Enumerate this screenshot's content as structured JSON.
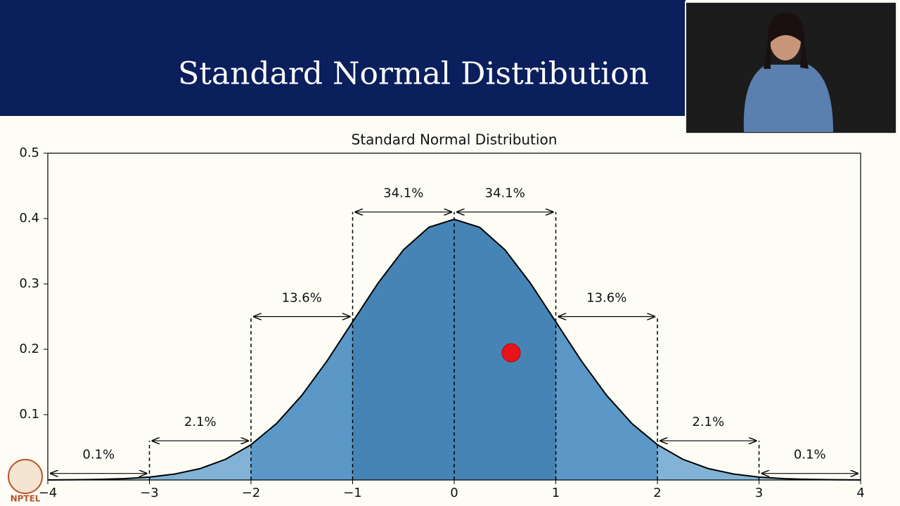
{
  "slide_title": "Standard Normal Distribution",
  "logo": "NPTEL",
  "chart_data": {
    "type": "area",
    "title": "Standard Normal Distribution",
    "x": [
      -4,
      -3.75,
      -3.5,
      -3.25,
      -3,
      -2.75,
      -2.5,
      -2.25,
      -2,
      -1.75,
      -1.5,
      -1.25,
      -1,
      -0.75,
      -0.5,
      -0.25,
      0,
      0.25,
      0.5,
      0.75,
      1,
      1.25,
      1.5,
      1.75,
      2,
      2.25,
      2.5,
      2.75,
      3,
      3.25,
      3.5,
      3.75,
      4
    ],
    "series": [
      {
        "color": "#000000",
        "values": [
          0.0001,
          0.0004,
          0.0009,
          0.002,
          0.0044,
          0.0091,
          0.0175,
          0.0317,
          0.054,
          0.0863,
          0.1295,
          0.1826,
          0.242,
          0.3011,
          0.3521,
          0.3867,
          0.3989,
          0.3867,
          0.3521,
          0.3011,
          0.242,
          0.1826,
          0.1295,
          0.0863,
          0.054,
          0.0317,
          0.0175,
          0.0091,
          0.0044,
          0.002,
          0.0009,
          0.0004,
          0.0001
        ]
      }
    ],
    "regions": [
      {
        "from": -4,
        "to": -3,
        "value": 0.1,
        "label": "0.1%",
        "y": 0.01,
        "color": "#a3c8e3"
      },
      {
        "from": -3,
        "to": -2,
        "value": 2.1,
        "label": "2.1%",
        "y": 0.06,
        "color": "#82b3d7"
      },
      {
        "from": -2,
        "to": -1,
        "value": 13.6,
        "label": "13.6%",
        "y": 0.25,
        "color": "#5b98c8"
      },
      {
        "from": -1,
        "to": 0,
        "value": 34.1,
        "label": "34.1%",
        "y": 0.41,
        "color": "#4684b6"
      },
      {
        "from": 0,
        "to": 1,
        "value": 34.1,
        "label": "34.1%",
        "y": 0.41,
        "color": "#4684b6"
      },
      {
        "from": 1,
        "to": 2,
        "value": 13.6,
        "label": "13.6%",
        "y": 0.25,
        "color": "#5b98c8"
      },
      {
        "from": 2,
        "to": 3,
        "value": 2.1,
        "label": "2.1%",
        "y": 0.06,
        "color": "#82b3d7"
      },
      {
        "from": 3,
        "to": 4,
        "value": 0.1,
        "label": "0.1%",
        "y": 0.01,
        "color": "#a3c8e3"
      }
    ],
    "xlim": [
      -4,
      4
    ],
    "xticks": [
      {
        "value": -4,
        "label": "−4"
      },
      {
        "value": -3,
        "label": "−3"
      },
      {
        "value": -2,
        "label": "−2"
      },
      {
        "value": -1,
        "label": "−1"
      },
      0,
      1,
      2,
      3,
      4
    ],
    "ylim": [
      0,
      0.5
    ],
    "yticks": [
      0.1,
      0.2,
      0.3,
      0.4,
      0.5
    ]
  }
}
